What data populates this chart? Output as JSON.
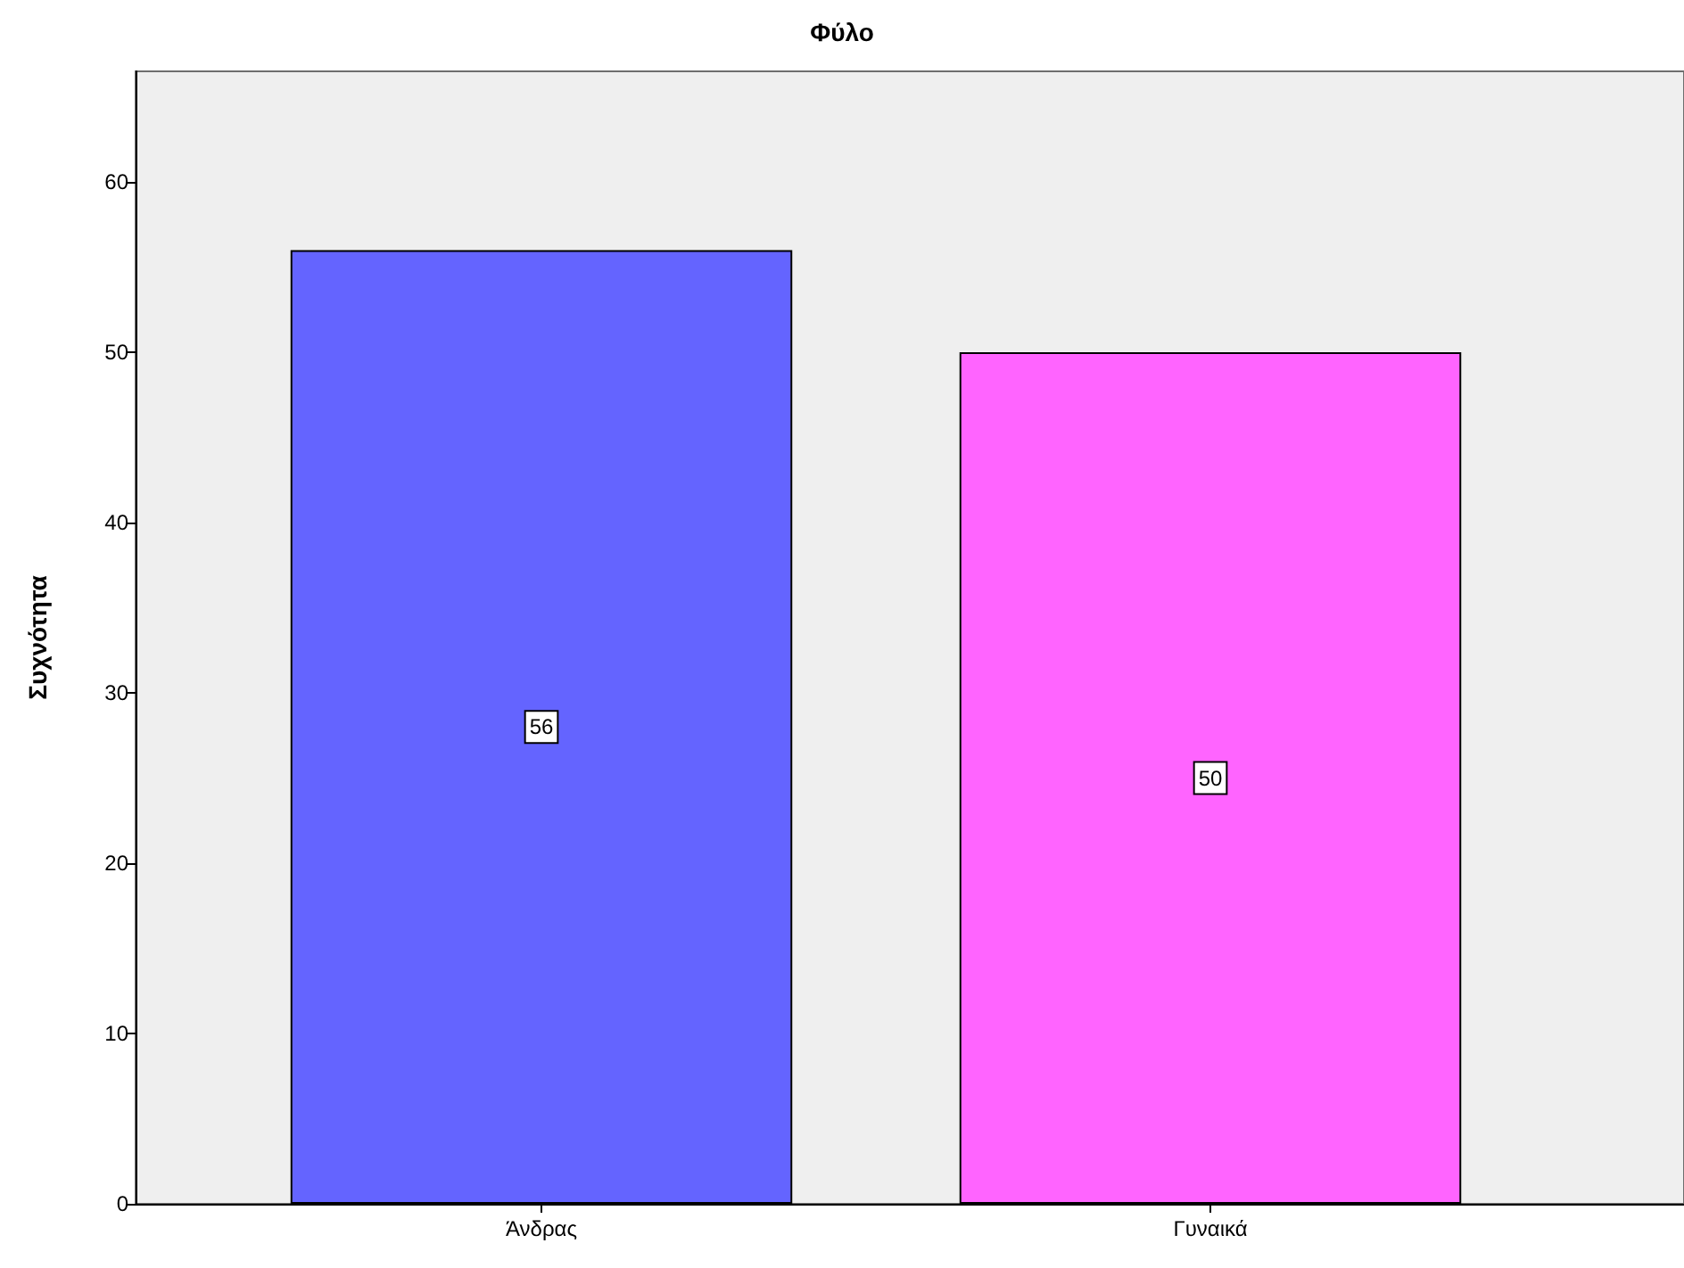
{
  "chart_data": {
    "type": "bar",
    "title": "Φύλο",
    "ylabel": "Συχνότητα",
    "categories": [
      "Άνδρας",
      "Γυναικά"
    ],
    "values": [
      56,
      50
    ],
    "colors": [
      "#6464ff",
      "#ff64ff"
    ],
    "ylim": [
      0,
      66.5
    ],
    "yticks": [
      0,
      10,
      20,
      30,
      40,
      50,
      60
    ],
    "data_labels": true,
    "grid": false
  }
}
